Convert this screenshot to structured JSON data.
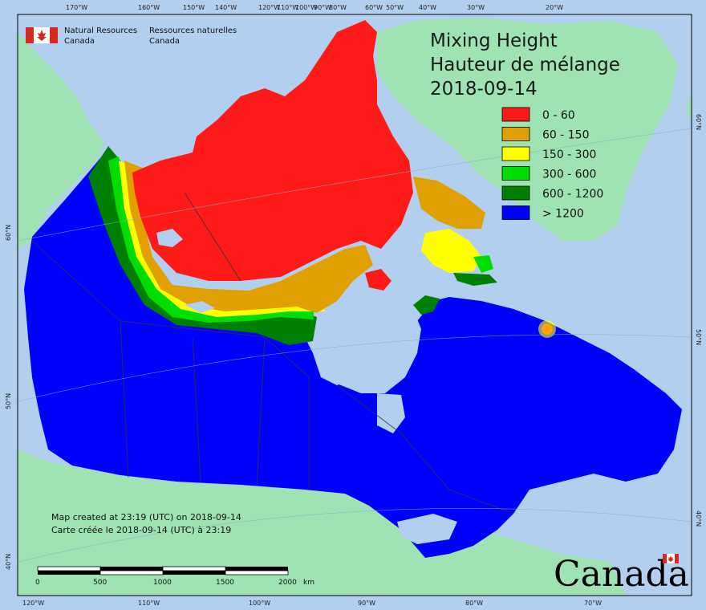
{
  "map": {
    "title_en": "Mixing Height",
    "title_fr": "Hauteur de mélange",
    "date": "2018-09-14",
    "colors": {
      "ocean": "#b3cff0",
      "foreign_land": "#9fe3b4",
      "border_line": "#333333"
    }
  },
  "agency": {
    "name_en_line1": "Natural Resources",
    "name_en_line2": "Canada",
    "name_fr_line1": "Ressources naturelles",
    "name_fr_line2": "Canada"
  },
  "legend": {
    "items": [
      {
        "label": "0 - 60",
        "color": "#ff1a1a"
      },
      {
        "label": "60 - 150",
        "color": "#e0a000"
      },
      {
        "label": "150 - 300",
        "color": "#ffff00"
      },
      {
        "label": "300 - 600",
        "color": "#00dd00"
      },
      {
        "label": "600 - 1200",
        "color": "#008000"
      },
      {
        "label": "> 1200",
        "color": "#0000ff"
      }
    ]
  },
  "graticule": {
    "top_labels": [
      "170°W",
      "160°W",
      "150°W",
      "140°W",
      "120°W",
      "110°W",
      "100°W",
      "90°W",
      "80°W",
      "60°W",
      "50°W",
      "40°W",
      "30°W",
      "20°W"
    ],
    "bottom_labels": [
      "120°W",
      "110°W",
      "100°W",
      "90°W",
      "80°W",
      "70°W"
    ],
    "left_labels": [
      "60°N",
      "50°N",
      "40°N"
    ],
    "right_labels": [
      "60°N",
      "50°N",
      "40°N"
    ]
  },
  "notes": {
    "created_en": "Map created at 23:19 (UTC) on 2018-09-14",
    "created_fr": "Carte créée le 2018-09-14 (UTC) à 23:19"
  },
  "scale_bar": {
    "labels": [
      "0",
      "500",
      "1000",
      "1500",
      "2000"
    ],
    "unit": "km"
  },
  "wordmark": "Canada"
}
